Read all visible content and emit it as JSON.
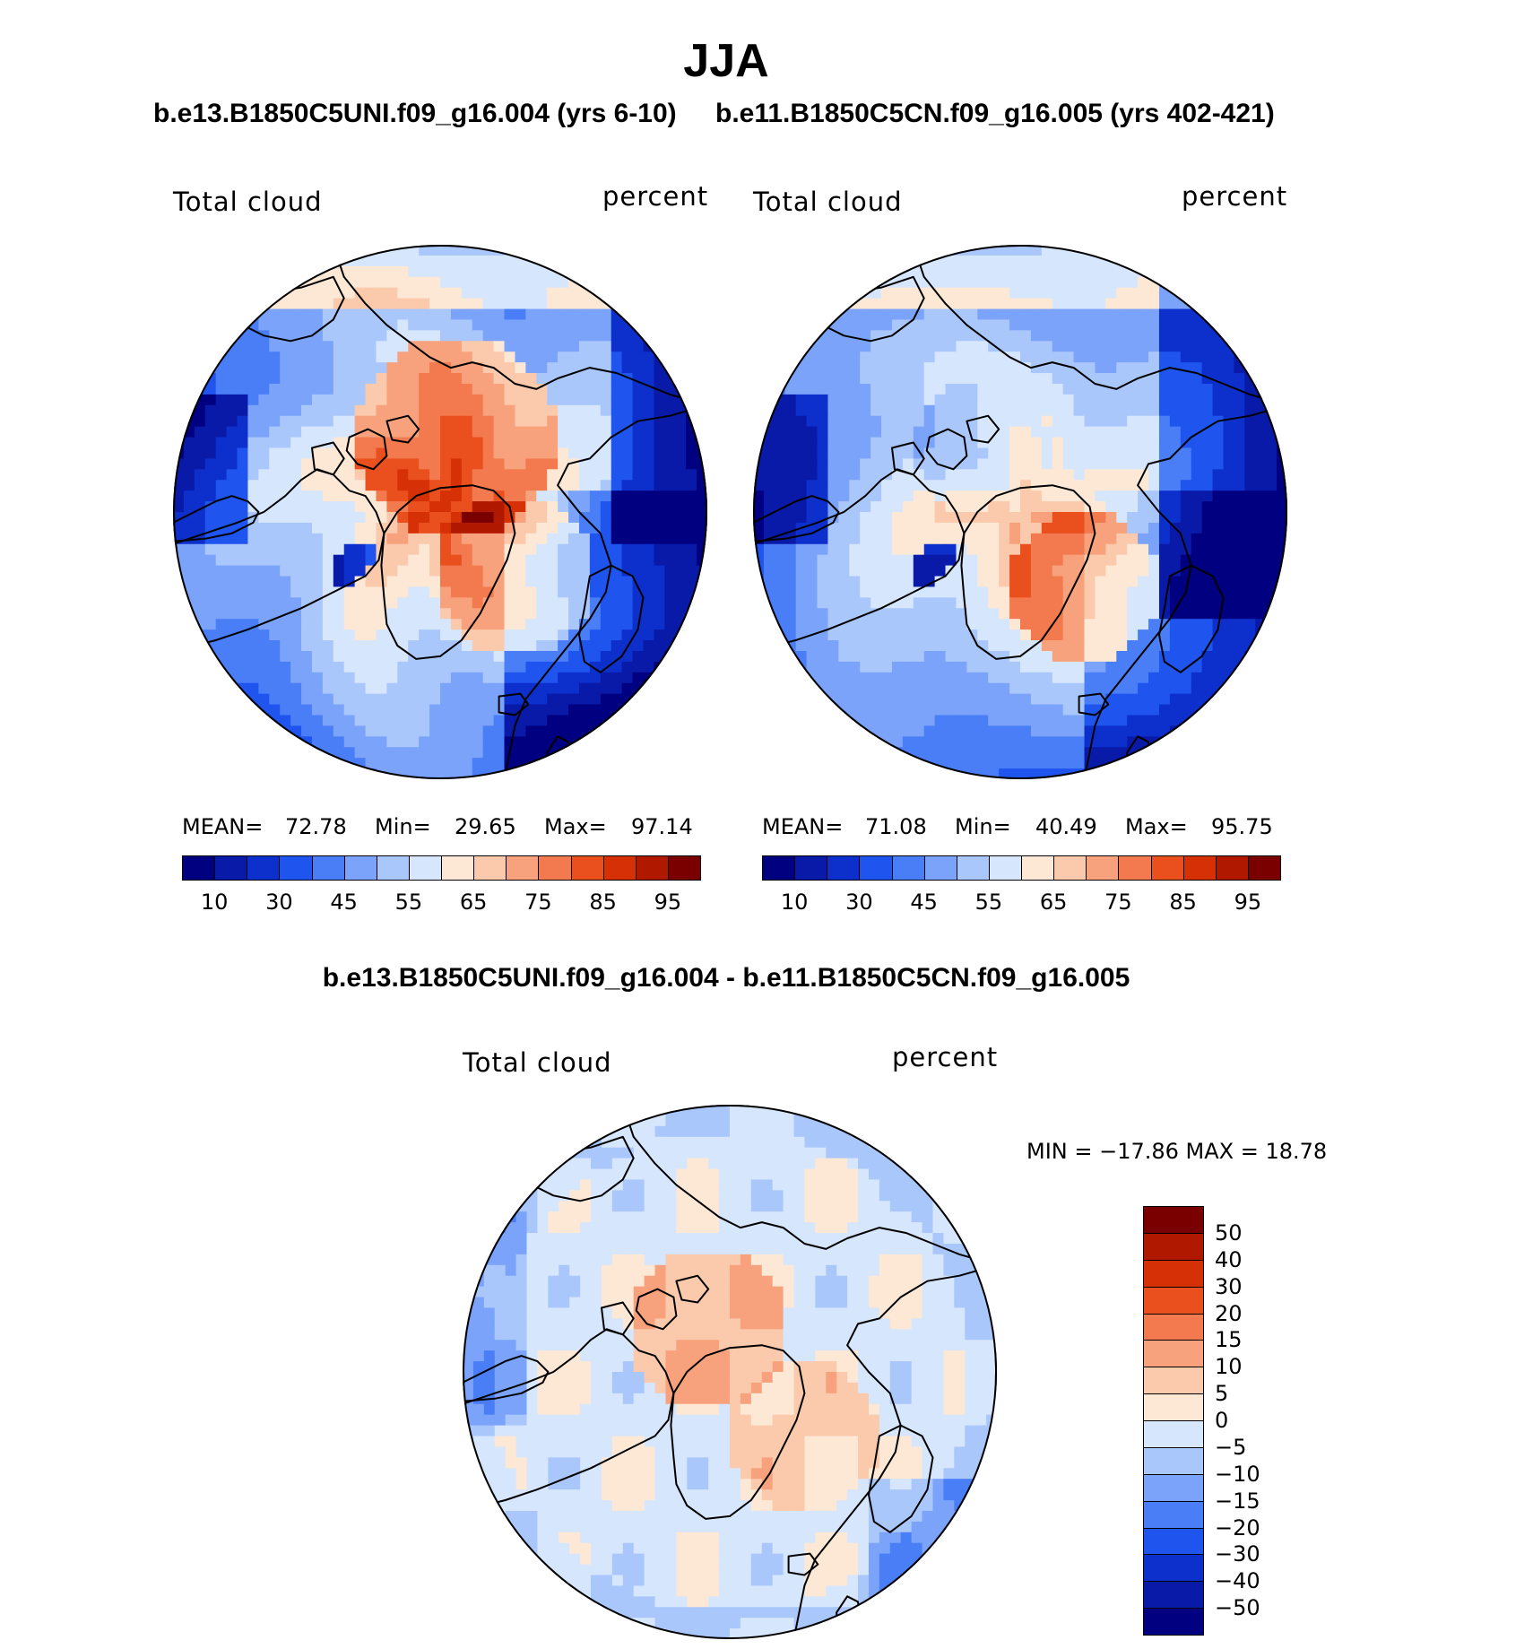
{
  "page": {
    "title": "JJA",
    "left_case": "b.e13.B1850C5UNI.f09_g16.004 (yrs 6-10)",
    "right_case": "b.e11.B1850C5CN.f09_g16.005 (yrs 402-421)",
    "diff_case": "b.e13.B1850C5UNI.f09_g16.004 - b.e11.B1850C5CN.f09_g16.005"
  },
  "colors": {
    "abs_levels": [
      "#000080",
      "#0a1aa8",
      "#0d2fcc",
      "#1f55ee",
      "#4a7ef7",
      "#7aa3f9",
      "#aac7fb",
      "#d6e6fc",
      "#fde8d6",
      "#fbc9ab",
      "#f7a27c",
      "#f27a4e",
      "#ea4f1e",
      "#d63006",
      "#b01800",
      "#7a0000"
    ],
    "diff_levels": [
      "#000080",
      "#0a1aa8",
      "#0d2fcc",
      "#1f55ee",
      "#4a7ef7",
      "#7aa3f9",
      "#aac7fb",
      "#d6e6fc",
      "#fde8d6",
      "#fbc9ab",
      "#f7a27c",
      "#f27a4e",
      "#ea4f1e",
      "#d63006",
      "#b01800",
      "#7a0000"
    ],
    "coast": "#000000"
  },
  "chart_data": [
    {
      "type": "heatmap",
      "projection": "polar-stereographic",
      "name": "left-panel",
      "left_label": "Total cloud",
      "right_label": "percent",
      "mean_label": "MEAN=",
      "mean": "72.78",
      "min_label": "Min=",
      "min": "29.65",
      "max_label": "Max=",
      "max": "97.14",
      "colorbar_levels": 16,
      "colorbar_ticks": [
        "10",
        "30",
        "45",
        "55",
        "65",
        "75",
        "85",
        "95"
      ]
    },
    {
      "type": "heatmap",
      "projection": "polar-stereographic",
      "name": "right-panel",
      "left_label": "Total cloud",
      "right_label": "percent",
      "mean_label": "MEAN=",
      "mean": "71.08",
      "min_label": "Min=",
      "min": "40.49",
      "max_label": "Max=",
      "max": "95.75",
      "colorbar_levels": 16,
      "colorbar_ticks": [
        "10",
        "30",
        "45",
        "55",
        "65",
        "75",
        "85",
        "95"
      ]
    },
    {
      "type": "heatmap",
      "projection": "polar-stereographic",
      "name": "diff-panel",
      "left_label": "Total cloud",
      "right_label": "percent",
      "minmax_text": "MIN = −17.86  MAX =   18.78",
      "colorbar_levels": 16,
      "colorbar_ticks": [
        "50",
        "40",
        "30",
        "20",
        "15",
        "10",
        "5",
        "0",
        "−5",
        "−10",
        "−15",
        "−20",
        "−30",
        "−40",
        "−50"
      ]
    }
  ]
}
